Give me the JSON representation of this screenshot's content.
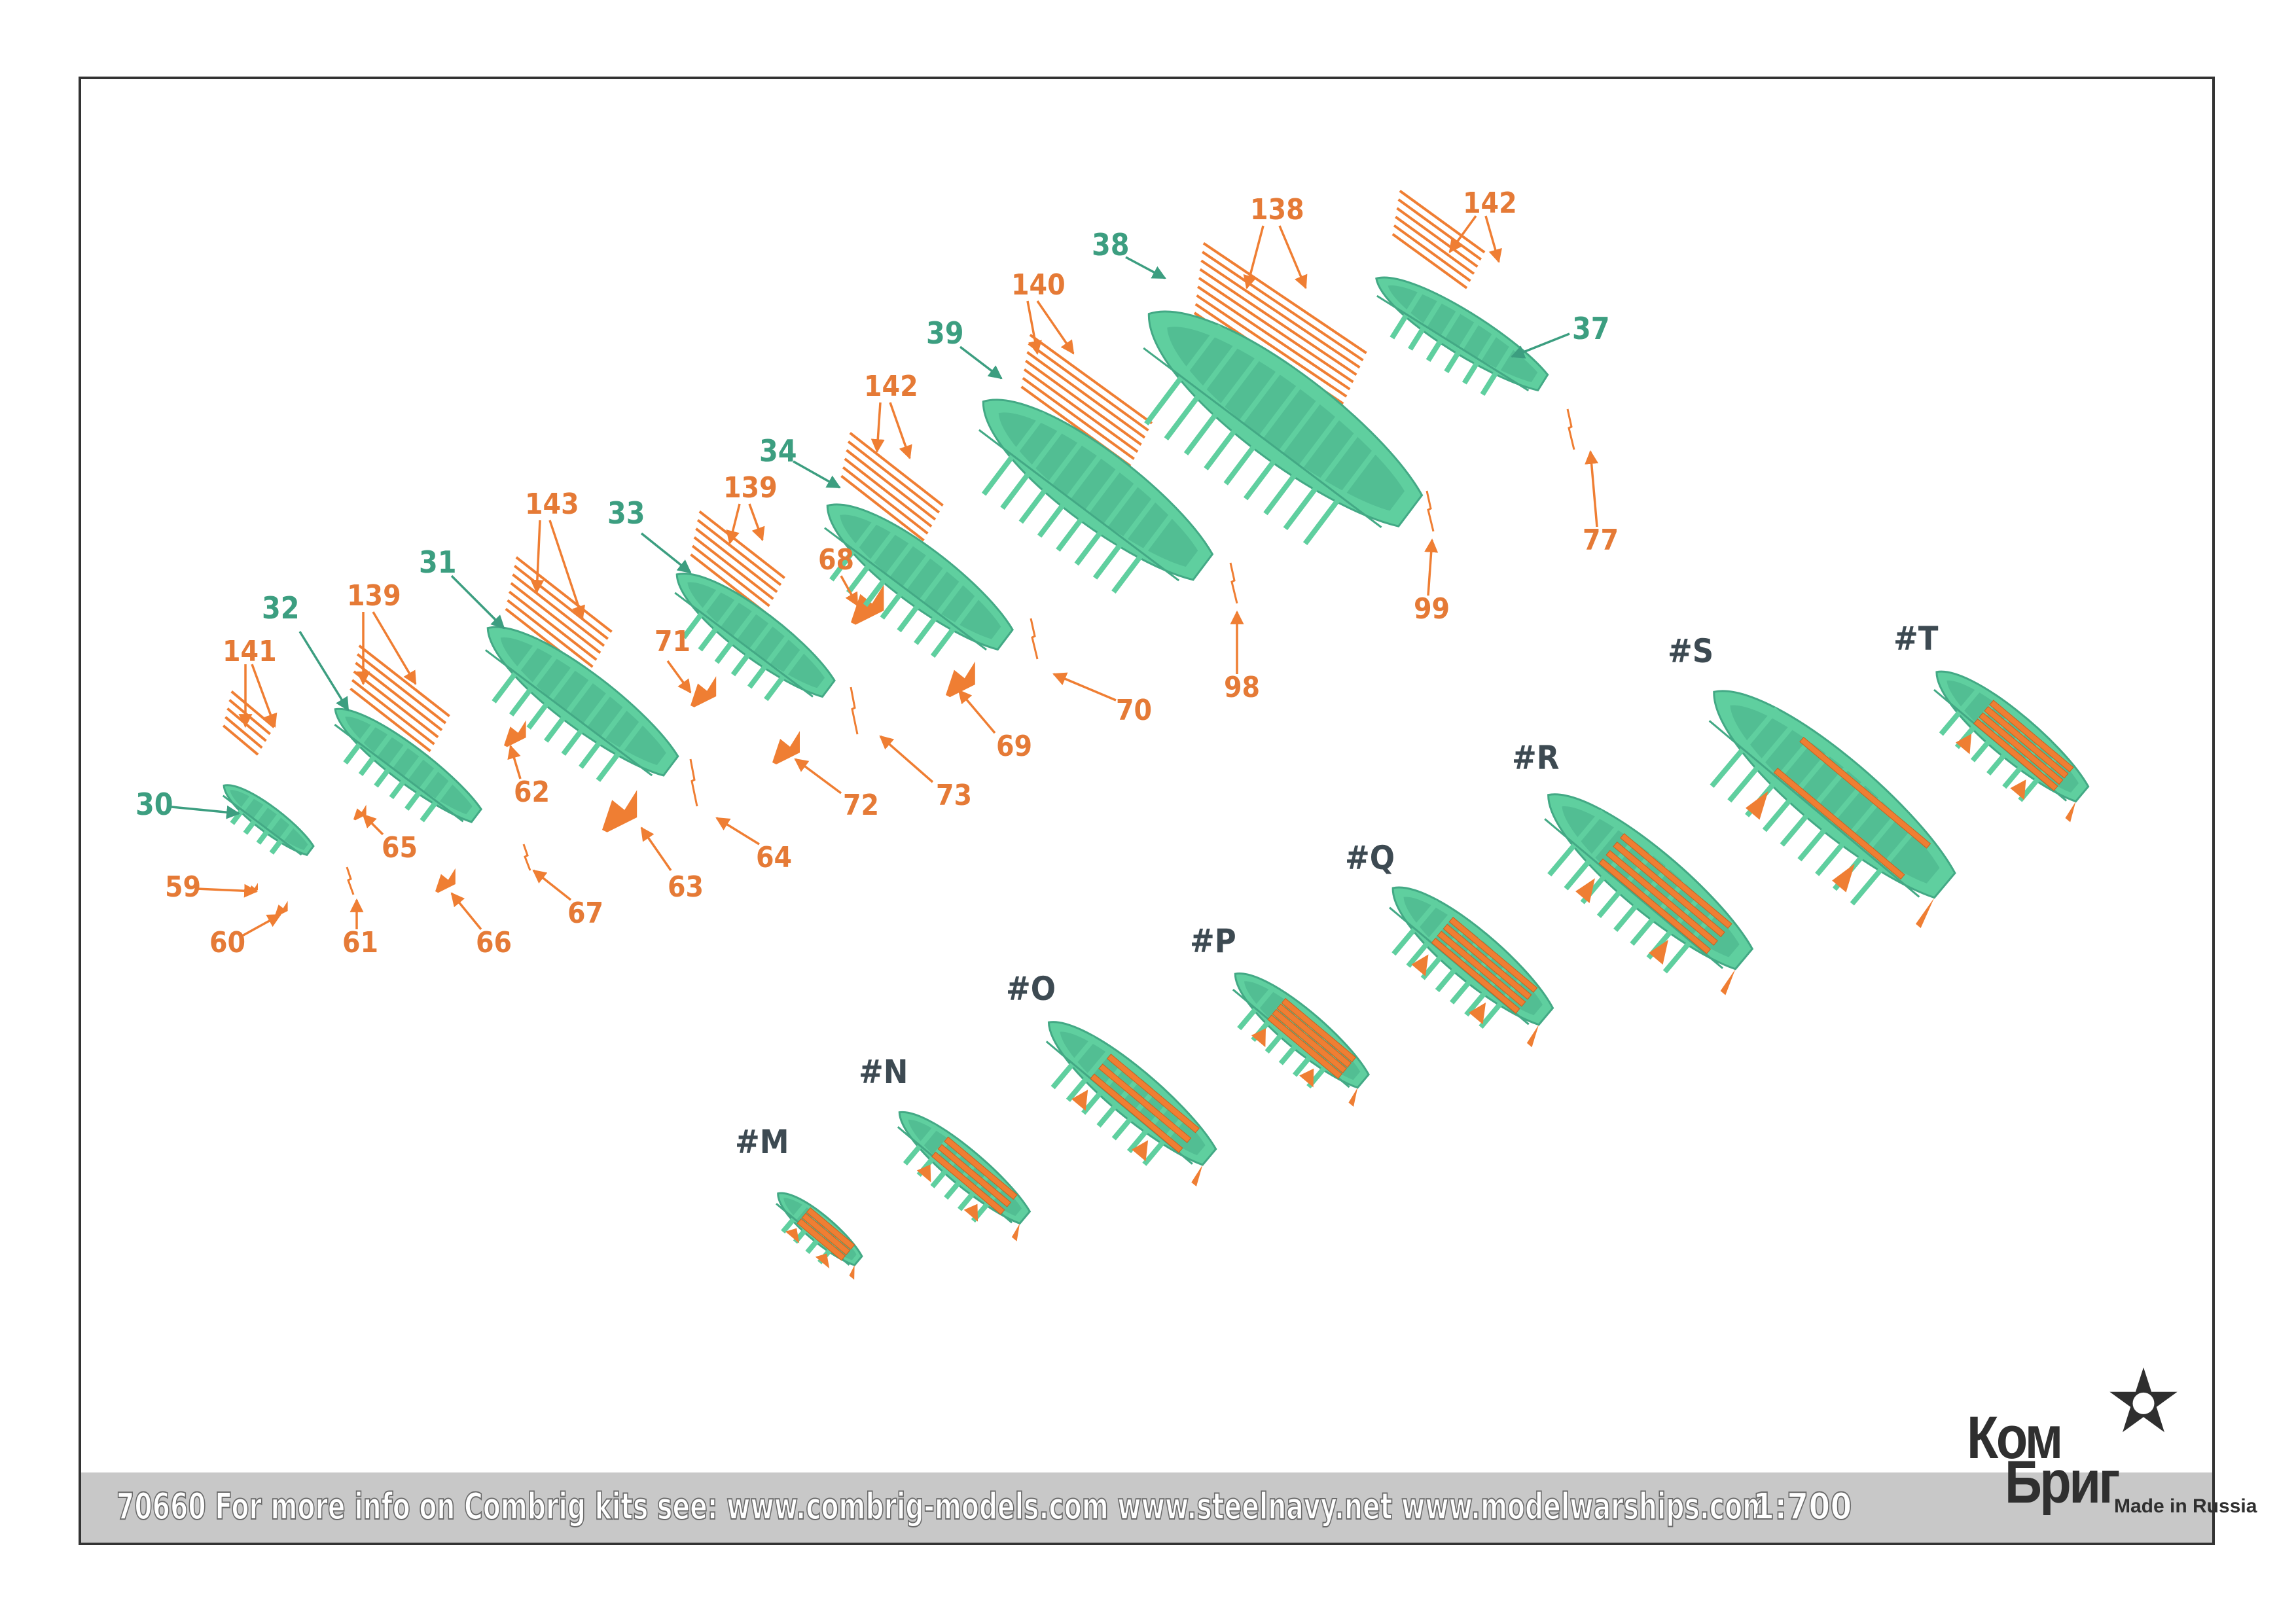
{
  "footer": {
    "info": "70660 For more info on Combrig kits see: www.combrig-models.com www.steelnavy.net www.modelwarships.com",
    "scale": "1:700"
  },
  "logo": {
    "line1": "Ком",
    "line2": "Бриг",
    "tagline": "Made in Russia"
  },
  "colors": {
    "boat": "#5fcf9f",
    "boat_dark": "#43a985",
    "part": "#ef7e33",
    "green_label": "#3c9e80",
    "orange_label": "#e57a36",
    "assembly_label": "#3d4a52"
  },
  "boats": [
    {
      "id": "30"
    },
    {
      "id": "32"
    },
    {
      "id": "31"
    },
    {
      "id": "33"
    },
    {
      "id": "34"
    },
    {
      "id": "39"
    },
    {
      "id": "38"
    },
    {
      "id": "37"
    }
  ],
  "parts": [
    {
      "id": "141"
    },
    {
      "id": "139"
    },
    {
      "id": "143"
    },
    {
      "id": "139b",
      "label": "139"
    },
    {
      "id": "142"
    },
    {
      "id": "140"
    },
    {
      "id": "138"
    },
    {
      "id": "142b",
      "label": "142"
    },
    {
      "id": "59"
    },
    {
      "id": "60"
    },
    {
      "id": "61"
    },
    {
      "id": "65"
    },
    {
      "id": "66"
    },
    {
      "id": "62"
    },
    {
      "id": "67"
    },
    {
      "id": "63"
    },
    {
      "id": "64"
    },
    {
      "id": "71"
    },
    {
      "id": "72"
    },
    {
      "id": "73"
    },
    {
      "id": "68"
    },
    {
      "id": "69"
    },
    {
      "id": "70"
    },
    {
      "id": "98"
    },
    {
      "id": "99"
    },
    {
      "id": "77"
    }
  ],
  "assemblies": [
    {
      "id": "#M"
    },
    {
      "id": "#N"
    },
    {
      "id": "#O"
    },
    {
      "id": "#P"
    },
    {
      "id": "#Q"
    },
    {
      "id": "#R"
    },
    {
      "id": "#S"
    },
    {
      "id": "#T"
    }
  ],
  "labels": {
    "b30": "30",
    "b32": "32",
    "b31": "31",
    "b33": "33",
    "b34": "34",
    "b39": "39",
    "b38": "38",
    "b37": "37",
    "p141": "141",
    "p139": "139",
    "p143": "143",
    "p139b": "139",
    "p142": "142",
    "p140": "140",
    "p138": "138",
    "p142b": "142",
    "p59": "59",
    "p60": "60",
    "p61": "61",
    "p65": "65",
    "p66": "66",
    "p62": "62",
    "p67": "67",
    "p63": "63",
    "p64": "64",
    "p71": "71",
    "p72": "72",
    "p73": "73",
    "p68": "68",
    "p69": "69",
    "p70": "70",
    "p98": "98",
    "p99": "99",
    "p77": "77",
    "aM": "#M",
    "aN": "#N",
    "aO": "#O",
    "aP": "#P",
    "aQ": "#Q",
    "aR": "#R",
    "aS": "#S",
    "aT": "#T"
  }
}
